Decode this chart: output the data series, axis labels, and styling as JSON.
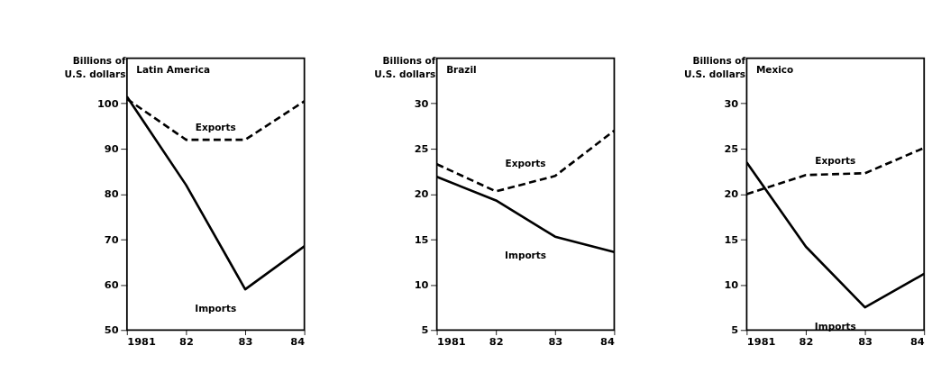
{
  "chart_data": [
    {
      "type": "line",
      "title": "Latin America",
      "ylabel": "Billions of\nU.S. dollars",
      "x": [
        1981,
        1982,
        1983,
        1984
      ],
      "xlim": [
        1981,
        1984
      ],
      "xticks": [
        {
          "value": 1981,
          "label": "1981"
        },
        {
          "value": 1982,
          "label": "82"
        },
        {
          "value": 1983,
          "label": "83"
        },
        {
          "value": 1984,
          "label": "84"
        }
      ],
      "ylim": [
        50,
        110
      ],
      "yticks": [
        50,
        60,
        70,
        80,
        90,
        100
      ],
      "marker": "none",
      "series": [
        {
          "name": "Exports",
          "color": "#000000",
          "line_style": "dashed",
          "values": [
            101,
            92,
            92,
            100.5
          ]
        },
        {
          "name": "Imports",
          "color": "#000000",
          "line_style": "solid",
          "values": [
            101.5,
            82,
            59,
            68.5
          ]
        }
      ]
    },
    {
      "type": "line",
      "title": "Brazil",
      "ylabel": "Billions of\nU.S. dollars",
      "x": [
        1981,
        1982,
        1983,
        1984
      ],
      "xlim": [
        1981,
        1984
      ],
      "xticks": [
        {
          "value": 1981,
          "label": "1981"
        },
        {
          "value": 1982,
          "label": "82"
        },
        {
          "value": 1983,
          "label": "83"
        },
        {
          "value": 1984,
          "label": "84"
        }
      ],
      "ylim": [
        5,
        35
      ],
      "yticks": [
        5,
        10,
        15,
        20,
        25,
        30
      ],
      "marker": "none",
      "series": [
        {
          "name": "Exports",
          "color": "#000000",
          "line_style": "dashed",
          "values": [
            23.3,
            20.3,
            22,
            27
          ]
        },
        {
          "name": "Imports",
          "color": "#000000",
          "line_style": "solid",
          "values": [
            21.9,
            19.3,
            15.3,
            13.6
          ]
        }
      ]
    },
    {
      "type": "line",
      "title": "Mexico",
      "ylabel": "Billions of\nU.S. dollars",
      "x": [
        1981,
        1982,
        1983,
        1984
      ],
      "xlim": [
        1981,
        1984
      ],
      "xticks": [
        {
          "value": 1981,
          "label": "1981"
        },
        {
          "value": 1982,
          "label": "82"
        },
        {
          "value": 1983,
          "label": "83"
        },
        {
          "value": 1984,
          "label": "84"
        }
      ],
      "ylim": [
        5,
        35
      ],
      "yticks": [
        5,
        10,
        15,
        20,
        25,
        30
      ],
      "marker": "none",
      "series": [
        {
          "name": "Exports",
          "color": "#000000",
          "line_style": "dashed",
          "values": [
            20,
            22.1,
            22.3,
            25.1
          ]
        },
        {
          "name": "Imports",
          "color": "#000000",
          "line_style": "solid",
          "values": [
            23.5,
            14.2,
            7.5,
            11.2
          ]
        }
      ]
    }
  ]
}
